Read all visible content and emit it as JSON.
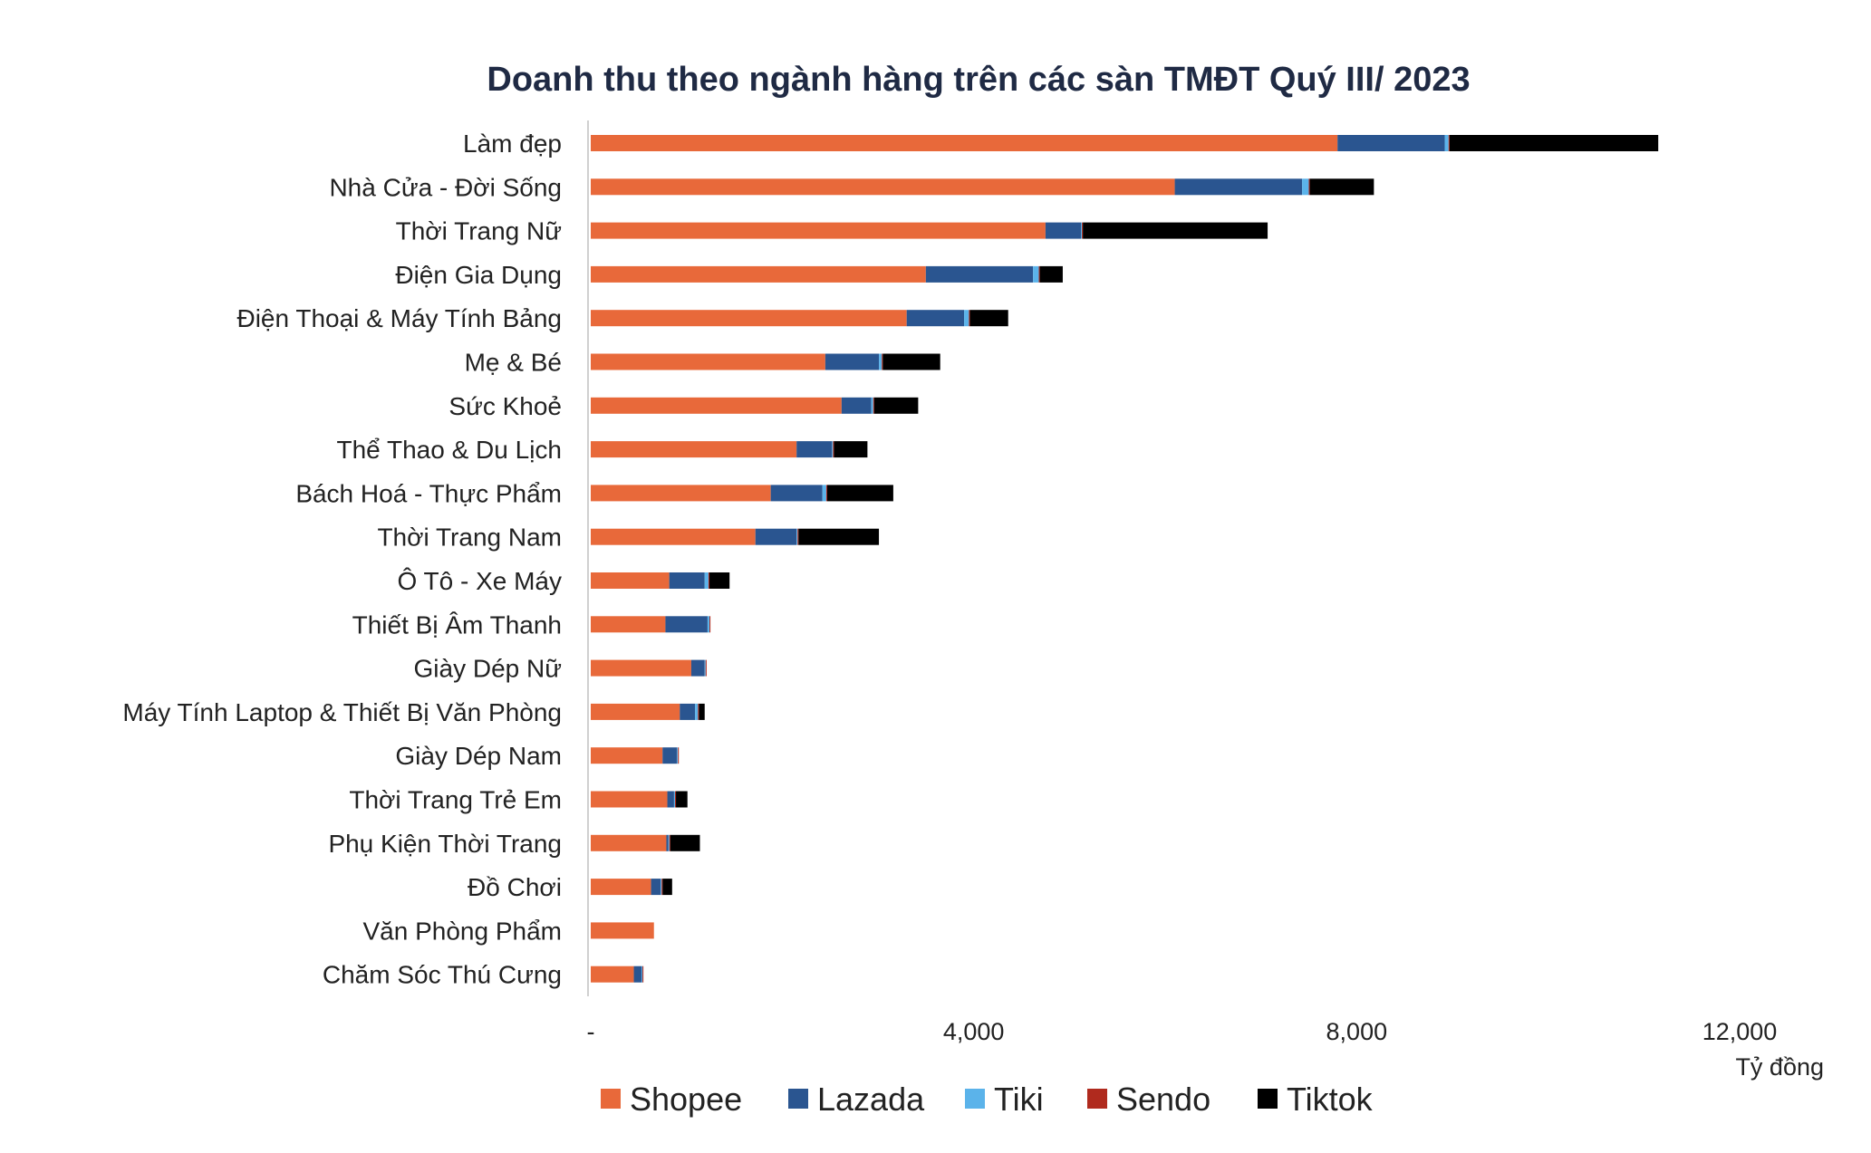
{
  "chart_data": {
    "type": "bar",
    "orientation": "horizontal",
    "stacked": true,
    "title": "Doanh thu theo ngành hàng trên các sàn TMĐT Quý III/ 2023",
    "xlabel": "",
    "ylabel": "",
    "unit_label": "Tỷ đồng",
    "xlim": [
      0,
      12000
    ],
    "x_ticks": [
      0,
      4000,
      8000,
      12000
    ],
    "x_tick_labels": [
      "-",
      "4,000",
      "8,000",
      "12,000"
    ],
    "grid": false,
    "legend_position": "bottom",
    "categories": [
      "Làm đẹp",
      "Nhà Cửa - Đời Sống",
      "Thời Trang Nữ",
      "Điện Gia Dụng",
      "Điện Thoại & Máy Tính Bảng",
      "Mẹ & Bé",
      "Sức Khoẻ",
      "Thể Thao & Du Lịch",
      "Bách Hoá - Thực Phẩm",
      "Thời Trang Nam",
      "Ô Tô - Xe Máy",
      "Thiết Bị Âm Thanh",
      "Giày Dép Nữ",
      "Máy Tính  Laptop & Thiết Bị Văn Phòng",
      "Giày Dép Nam",
      "Thời Trang Trẻ Em",
      "Phụ Kiện Thời Trang",
      "Đồ Chơi",
      "Văn Phòng Phẩm",
      "Chăm Sóc Thú Cưng"
    ],
    "series": [
      {
        "name": "Shopee",
        "color": "#e8693a",
        "values": [
          7800,
          6100,
          4750,
          3500,
          3300,
          2450,
          2620,
          2150,
          1880,
          1720,
          820,
          780,
          1050,
          930,
          750,
          800,
          790,
          630,
          660,
          450
        ]
      },
      {
        "name": "Lazada",
        "color": "#2a5590",
        "values": [
          1120,
          1330,
          370,
          1120,
          600,
          560,
          310,
          370,
          540,
          430,
          370,
          440,
          140,
          160,
          150,
          70,
          20,
          100,
          0,
          80
        ]
      },
      {
        "name": "Tiki",
        "color": "#5bb3ea",
        "values": [
          40,
          70,
          10,
          60,
          50,
          30,
          20,
          10,
          40,
          10,
          40,
          20,
          10,
          30,
          10,
          10,
          10,
          10,
          0,
          10
        ]
      },
      {
        "name": "Sendo",
        "color": "#b02a1e",
        "values": [
          10,
          10,
          10,
          10,
          10,
          10,
          10,
          10,
          10,
          10,
          10,
          10,
          10,
          10,
          10,
          10,
          10,
          10,
          0,
          10
        ]
      },
      {
        "name": "Tiktok",
        "color": "#000000",
        "values": [
          2180,
          670,
          1930,
          240,
          400,
          600,
          460,
          350,
          690,
          840,
          210,
          0,
          0,
          60,
          0,
          120,
          310,
          100,
          0,
          0
        ]
      }
    ]
  }
}
